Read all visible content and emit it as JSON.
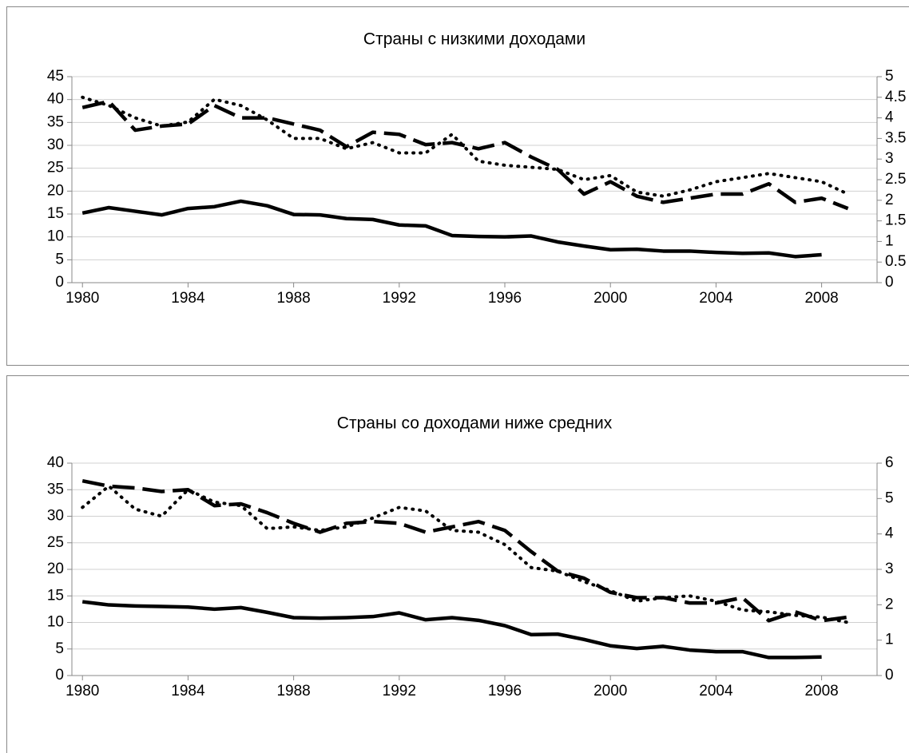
{
  "chart_data": [
    {
      "type": "line",
      "title": "Страны с низкими доходами",
      "x": [
        1980,
        1981,
        1982,
        1983,
        1984,
        1985,
        1986,
        1987,
        1988,
        1989,
        1990,
        1991,
        1992,
        1993,
        1994,
        1995,
        1996,
        1997,
        1998,
        1999,
        2000,
        2001,
        2002,
        2003,
        2004,
        2005,
        2006,
        2007,
        2008,
        2009
      ],
      "xlim": [
        1979.6,
        2010.1
      ],
      "xticks": [
        1980,
        1984,
        1988,
        1992,
        1996,
        2000,
        2004,
        2008
      ],
      "ylim": [
        0,
        45
      ],
      "yticks": [
        0,
        5,
        10,
        15,
        20,
        25,
        30,
        35,
        40,
        45
      ],
      "y2lim": [
        0,
        5
      ],
      "y2ticks": [
        0,
        0.5,
        1,
        1.5,
        2,
        2.5,
        3,
        3.5,
        4,
        4.5,
        5
      ],
      "grid": true,
      "series": [
        {
          "color": "#000000",
          "style": "solid",
          "values": [
            15.2,
            16.4,
            15.6,
            14.8,
            16.2,
            16.6,
            17.8,
            16.8,
            14.9,
            14.8,
            14.0,
            13.8,
            12.6,
            12.4,
            10.3,
            10.1,
            10.0,
            10.2,
            8.9,
            8.0,
            7.2,
            7.3,
            6.9,
            6.9,
            6.6,
            6.4,
            6.5,
            5.7,
            6.1,
            null
          ]
        },
        {
          "color": "#000000",
          "style": "dotted",
          "axis": "y2",
          "values": [
            4.5,
            4.3,
            4.0,
            3.8,
            3.9,
            4.45,
            4.3,
            3.95,
            3.5,
            3.5,
            3.25,
            3.4,
            3.15,
            3.15,
            3.6,
            2.95,
            2.85,
            2.8,
            2.75,
            2.5,
            2.6,
            2.2,
            2.1,
            2.25,
            2.45,
            2.55,
            2.65,
            2.55,
            2.45,
            2.15
          ]
        },
        {
          "color": "#000000",
          "style": "dashed",
          "axis": "y2",
          "values": [
            4.25,
            4.4,
            3.7,
            3.8,
            3.85,
            4.3,
            4.0,
            4.0,
            3.85,
            3.7,
            3.3,
            3.65,
            3.6,
            3.35,
            3.4,
            3.25,
            3.4,
            3.05,
            2.75,
            2.15,
            2.45,
            2.1,
            1.95,
            2.05,
            2.15,
            2.15,
            2.4,
            1.95,
            2.05,
            1.8
          ]
        }
      ]
    },
    {
      "type": "line",
      "title": "Страны со доходами ниже средних",
      "x": [
        1980,
        1981,
        1982,
        1983,
        1984,
        1985,
        1986,
        1987,
        1988,
        1989,
        1990,
        1991,
        1992,
        1993,
        1994,
        1995,
        1996,
        1997,
        1998,
        1999,
        2000,
        2001,
        2002,
        2003,
        2004,
        2005,
        2006,
        2007,
        2008,
        2009
      ],
      "xlim": [
        1979.6,
        2010.1
      ],
      "xticks": [
        1980,
        1984,
        1988,
        1992,
        1996,
        2000,
        2004,
        2008
      ],
      "ylim": [
        0,
        40
      ],
      "yticks": [
        0,
        5,
        10,
        15,
        20,
        25,
        30,
        35,
        40
      ],
      "y2lim": [
        0,
        6
      ],
      "y2ticks": [
        0,
        1,
        2,
        3,
        4,
        5,
        6
      ],
      "grid": true,
      "series": [
        {
          "color": "#000000",
          "style": "solid",
          "values": [
            13.9,
            13.3,
            13.1,
            13.0,
            12.9,
            12.5,
            12.8,
            11.9,
            10.9,
            10.8,
            10.9,
            11.1,
            11.8,
            10.5,
            10.9,
            10.4,
            9.4,
            7.7,
            7.8,
            6.8,
            5.6,
            5.1,
            5.5,
            4.8,
            4.5,
            4.5,
            3.4,
            3.4,
            3.5,
            null
          ]
        },
        {
          "color": "#000000",
          "style": "dotted",
          "axis": "y2",
          "values": [
            4.75,
            5.35,
            4.7,
            4.5,
            5.25,
            4.9,
            4.8,
            4.15,
            4.2,
            4.1,
            4.2,
            4.45,
            4.75,
            4.65,
            4.1,
            4.05,
            3.7,
            3.05,
            2.95,
            2.65,
            2.4,
            2.1,
            2.2,
            2.25,
            2.1,
            1.85,
            1.8,
            1.7,
            1.65,
            1.5
          ]
        },
        {
          "color": "#000000",
          "style": "dashed",
          "axis": "y2",
          "values": [
            5.5,
            5.35,
            5.3,
            5.2,
            5.25,
            4.8,
            4.85,
            4.6,
            4.3,
            4.05,
            4.3,
            4.35,
            4.3,
            4.05,
            4.2,
            4.35,
            4.1,
            3.5,
            2.95,
            2.75,
            2.35,
            2.2,
            2.2,
            2.05,
            2.05,
            2.2,
            1.55,
            1.8,
            1.55,
            1.65
          ]
        }
      ]
    }
  ]
}
